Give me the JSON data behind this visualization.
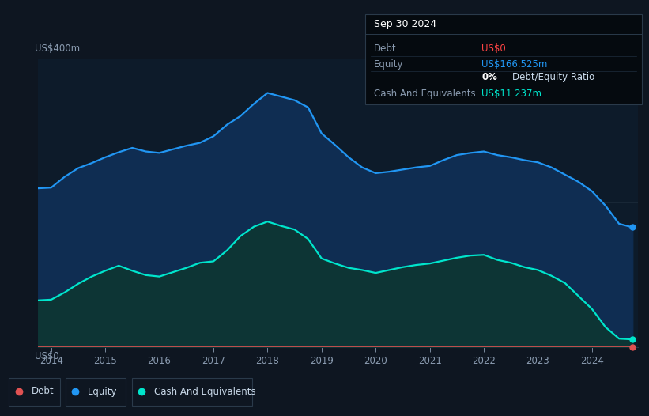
{
  "bg_color": "#0e1621",
  "plot_bg_color": "#0d1b2a",
  "title_box": {
    "date": "Sep 30 2024",
    "rows": [
      {
        "label": "Debt",
        "value": "US$0",
        "value_color": "#ff4444"
      },
      {
        "label": "Equity",
        "value": "US$166.525m",
        "value_color": "#2196f3"
      },
      {
        "label": "",
        "value": "0% Debt/Equity Ratio",
        "value_color": "#ccddee",
        "bold_prefix": "0%"
      },
      {
        "label": "Cash And Equivalents",
        "value": "US$11.237m",
        "value_color": "#00e5cc"
      }
    ]
  },
  "ylabel_top": "US$400m",
  "ylabel_bottom": "US$0",
  "x_ticks": [
    "2014",
    "2015",
    "2016",
    "2017",
    "2018",
    "2019",
    "2020",
    "2021",
    "2022",
    "2023",
    "2024"
  ],
  "legend": [
    {
      "label": "Debt",
      "color": "#e05252"
    },
    {
      "label": "Equity",
      "color": "#2196f3"
    },
    {
      "label": "Cash And Equivalents",
      "color": "#00e5cc"
    }
  ],
  "equity_line_color": "#2196f3",
  "equity_fill_color": "#0f2d52",
  "cash_line_color": "#00e5cc",
  "cash_fill_color": "#0d3535",
  "debt_line_color": "#e05252",
  "grid_color": "#1e2d3d",
  "ymax": 400,
  "equity": {
    "x": [
      2013.75,
      2014.0,
      2014.25,
      2014.5,
      2014.75,
      2015.0,
      2015.25,
      2015.5,
      2015.75,
      2016.0,
      2016.25,
      2016.5,
      2016.75,
      2017.0,
      2017.25,
      2017.5,
      2017.75,
      2018.0,
      2018.25,
      2018.5,
      2018.75,
      2019.0,
      2019.25,
      2019.5,
      2019.75,
      2020.0,
      2020.25,
      2020.5,
      2020.75,
      2021.0,
      2021.25,
      2021.5,
      2021.75,
      2022.0,
      2022.25,
      2022.5,
      2022.75,
      2023.0,
      2023.25,
      2023.5,
      2023.75,
      2024.0,
      2024.25,
      2024.5,
      2024.75
    ],
    "y": [
      220,
      221,
      236,
      248,
      255,
      263,
      270,
      276,
      271,
      269,
      274,
      279,
      283,
      292,
      308,
      320,
      337,
      352,
      347,
      342,
      332,
      296,
      280,
      263,
      249,
      241,
      243,
      246,
      249,
      251,
      259,
      266,
      269,
      271,
      266,
      263,
      259,
      256,
      249,
      239,
      229,
      216,
      196,
      171,
      166
    ]
  },
  "cash": {
    "x": [
      2013.75,
      2014.0,
      2014.25,
      2014.5,
      2014.75,
      2015.0,
      2015.25,
      2015.5,
      2015.75,
      2016.0,
      2016.25,
      2016.5,
      2016.75,
      2017.0,
      2017.25,
      2017.5,
      2017.75,
      2018.0,
      2018.25,
      2018.5,
      2018.75,
      2019.0,
      2019.25,
      2019.5,
      2019.75,
      2020.0,
      2020.25,
      2020.5,
      2020.75,
      2021.0,
      2021.25,
      2021.5,
      2021.75,
      2022.0,
      2022.25,
      2022.5,
      2022.75,
      2023.0,
      2023.25,
      2023.5,
      2023.75,
      2024.0,
      2024.25,
      2024.5,
      2024.75
    ],
    "y": [
      65,
      66,
      76,
      88,
      98,
      106,
      113,
      106,
      100,
      98,
      104,
      110,
      117,
      119,
      134,
      154,
      167,
      174,
      168,
      163,
      150,
      123,
      116,
      110,
      107,
      103,
      107,
      111,
      114,
      116,
      120,
      124,
      127,
      128,
      121,
      117,
      111,
      107,
      99,
      89,
      71,
      53,
      28,
      12,
      11
    ]
  },
  "debt": {
    "x": [
      2013.75,
      2024.75
    ],
    "y": [
      0,
      0
    ]
  }
}
